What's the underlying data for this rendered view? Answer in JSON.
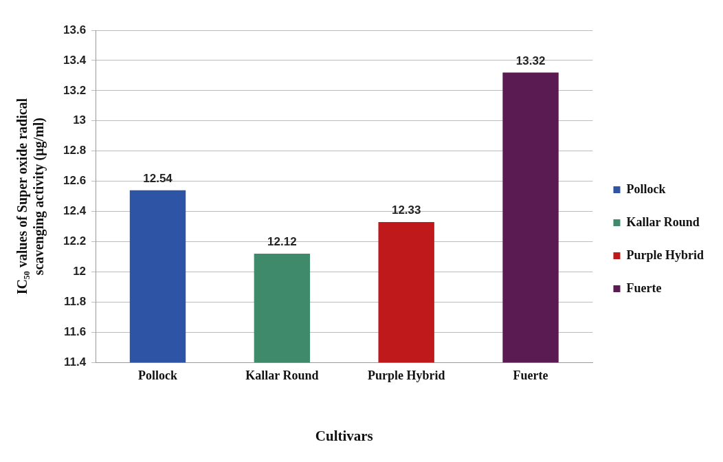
{
  "chart_data": {
    "type": "bar",
    "xlabel": "Cultivars",
    "ylabel": "IC₅₀ values of Super oxide radical scavenging activity (µg/ml)",
    "categories": [
      "Pollock",
      "Kallar Round",
      "Purple Hybrid",
      "Fuerte"
    ],
    "series": [
      {
        "name": "Pollock",
        "color": "#2e54a6",
        "values": [
          12.54,
          null,
          null,
          null
        ]
      },
      {
        "name": "Kallar Round",
        "color": "#3f8a6a",
        "values": [
          null,
          12.12,
          null,
          null
        ]
      },
      {
        "name": "Purple Hybrid",
        "color": "#c0191b",
        "values": [
          null,
          null,
          12.33,
          null
        ]
      },
      {
        "name": "Fuerte",
        "color": "#5a1a52",
        "values": [
          null,
          null,
          null,
          13.32
        ]
      }
    ],
    "ylim": [
      11.4,
      13.6
    ],
    "yticks": [
      11.4,
      11.6,
      11.8,
      12,
      12.2,
      12.4,
      12.6,
      12.8,
      13,
      13.2,
      13.4,
      13.6
    ],
    "grid": "y",
    "legend": "right",
    "data_labels": true
  }
}
